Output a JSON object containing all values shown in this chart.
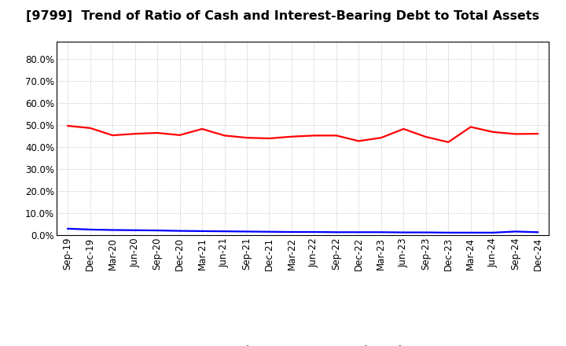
{
  "title": "[9799]  Trend of Ratio of Cash and Interest-Bearing Debt to Total Assets",
  "x_labels": [
    "Sep-19",
    "Dec-19",
    "Mar-20",
    "Jun-20",
    "Sep-20",
    "Dec-20",
    "Mar-21",
    "Jun-21",
    "Sep-21",
    "Dec-21",
    "Mar-22",
    "Jun-22",
    "Sep-22",
    "Dec-22",
    "Mar-23",
    "Jun-23",
    "Sep-23",
    "Dec-23",
    "Mar-24",
    "Jun-24",
    "Sep-24",
    "Dec-24"
  ],
  "cash": [
    0.497,
    0.487,
    0.454,
    0.461,
    0.465,
    0.455,
    0.483,
    0.453,
    0.443,
    0.44,
    0.448,
    0.453,
    0.453,
    0.428,
    0.443,
    0.483,
    0.447,
    0.423,
    0.492,
    0.469,
    0.46,
    0.461
  ],
  "interest_bearing_debt": [
    0.03,
    0.026,
    0.024,
    0.023,
    0.022,
    0.02,
    0.019,
    0.018,
    0.017,
    0.016,
    0.015,
    0.015,
    0.014,
    0.014,
    0.014,
    0.013,
    0.013,
    0.012,
    0.012,
    0.012,
    0.017,
    0.014
  ],
  "cash_color": "#FF0000",
  "debt_color": "#0000FF",
  "background_color": "#FFFFFF",
  "plot_bg_color": "#FFFFFF",
  "grid_color": "#AAAAAA",
  "ylim": [
    0.0,
    0.88
  ],
  "yticks": [
    0.0,
    0.1,
    0.2,
    0.3,
    0.4,
    0.5,
    0.6,
    0.7,
    0.8
  ],
  "legend_cash": "Cash",
  "legend_debt": "Interest-Bearing Debt",
  "title_fontsize": 11.5,
  "axis_fontsize": 8.5,
  "legend_fontsize": 9.5,
  "line_width": 1.6
}
